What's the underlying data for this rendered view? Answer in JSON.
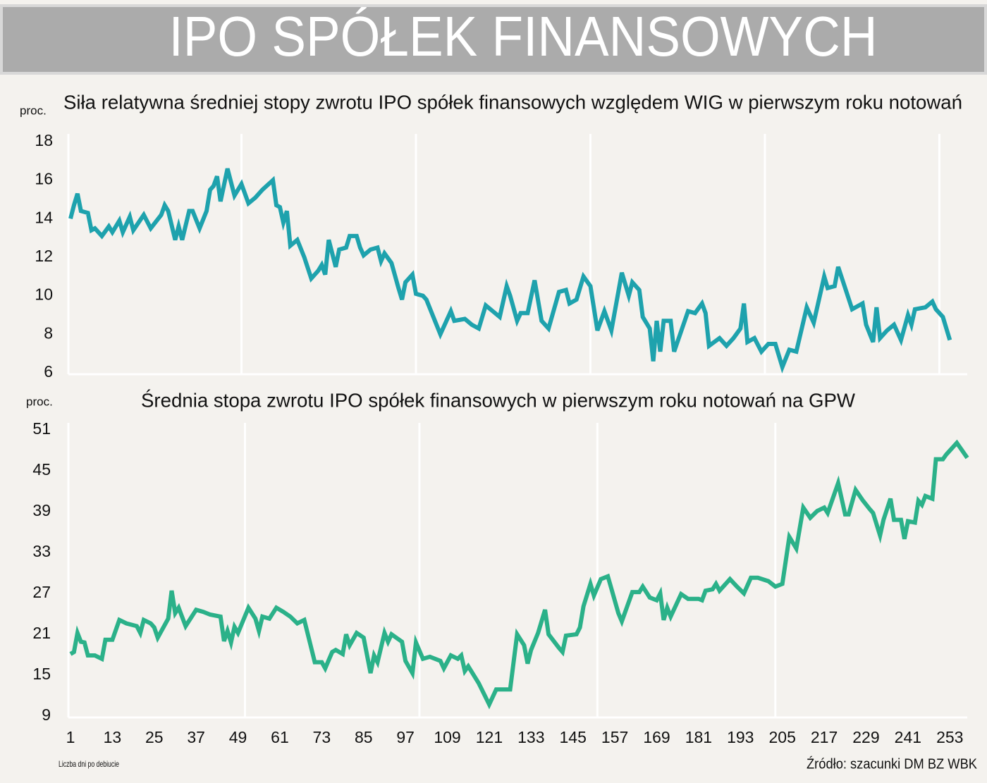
{
  "title": "IPO SPÓŁEK FINANSOWYCH",
  "x_label": "Liczba dni po debiucie",
  "source": "Źródło: szacunki DM BZ WBK",
  "chart_data": [
    {
      "type": "line",
      "title": "Siła relatywna średniej stopy zwrotu IPO spółek finansowych względem WIG w pierwszym roku notowań",
      "y_label": "proc.",
      "color": "#1ea2ad",
      "xlim": [
        1,
        258
      ],
      "xgrid": [
        50,
        100,
        150,
        200,
        250
      ],
      "ylim": [
        6,
        18
      ],
      "yticks": [
        6,
        8,
        10,
        12,
        14,
        16,
        18
      ],
      "x": [
        1,
        2,
        3,
        4,
        6,
        7,
        8,
        10,
        12,
        13,
        15,
        16,
        18,
        19,
        22,
        24,
        27,
        28,
        29,
        31,
        32,
        33,
        35,
        36,
        38,
        40,
        41,
        42,
        43,
        44,
        46,
        48,
        50,
        52,
        54,
        56,
        59,
        60,
        61,
        62,
        63,
        64,
        66,
        68,
        70,
        72,
        73,
        74,
        75,
        77,
        78,
        80,
        81,
        83,
        84,
        85,
        87,
        89,
        90,
        91,
        93,
        95,
        96,
        97,
        99,
        100,
        102,
        103,
        105,
        107,
        110,
        111,
        114,
        116,
        118,
        120,
        122,
        124,
        126,
        127,
        129,
        130,
        132,
        134,
        136,
        138,
        141,
        143,
        144,
        146,
        148,
        150,
        152,
        154,
        156,
        158,
        159,
        161,
        162,
        164,
        165,
        167,
        168,
        169,
        170,
        171,
        173,
        174,
        178,
        180,
        182,
        183,
        184,
        187,
        189,
        191,
        193,
        194,
        195,
        197,
        199,
        201,
        203,
        205,
        207,
        209,
        212,
        214,
        217,
        218,
        220,
        221,
        223,
        225,
        228,
        229,
        231,
        232,
        233,
        235,
        237,
        239,
        241,
        242,
        243,
        246,
        248,
        249,
        251,
        253
      ],
      "values": [
        14.0,
        14.7,
        15.3,
        14.4,
        14.3,
        13.4,
        13.5,
        13.1,
        13.6,
        13.3,
        13.9,
        13.3,
        14.1,
        13.4,
        14.2,
        13.5,
        14.2,
        14.7,
        14.4,
        12.9,
        13.6,
        12.9,
        14.4,
        14.4,
        13.5,
        14.4,
        15.5,
        15.7,
        16.2,
        14.9,
        16.6,
        15.2,
        15.8,
        14.8,
        15.1,
        15.5,
        16.0,
        14.7,
        14.6,
        13.8,
        14.4,
        12.6,
        12.9,
        12.0,
        10.9,
        11.3,
        11.6,
        11.1,
        12.9,
        11.5,
        12.4,
        12.5,
        13.1,
        13.1,
        12.5,
        12.1,
        12.4,
        12.5,
        11.8,
        12.2,
        11.7,
        10.4,
        9.8,
        10.7,
        11.1,
        10.1,
        10.0,
        9.8,
        8.9,
        8.0,
        9.2,
        8.7,
        8.8,
        8.5,
        8.3,
        9.5,
        9.2,
        8.9,
        10.5,
        10.0,
        8.7,
        9.1,
        9.1,
        10.8,
        8.7,
        8.3,
        10.2,
        10.3,
        9.6,
        9.8,
        11.0,
        10.5,
        8.2,
        9.2,
        8.2,
        10.2,
        11.2,
        10.0,
        10.7,
        10.3,
        8.9,
        8.3,
        6.6,
        8.7,
        7.1,
        8.7,
        8.7,
        7.1,
        9.2,
        9.1,
        9.6,
        9.1,
        7.4,
        7.8,
        7.4,
        7.8,
        8.3,
        9.6,
        7.6,
        7.8,
        7.1,
        7.5,
        7.5,
        6.3,
        7.2,
        7.1,
        9.4,
        8.6,
        11.0,
        10.4,
        10.5,
        11.5,
        10.4,
        9.3,
        9.6,
        8.5,
        7.6,
        9.4,
        7.8,
        8.2,
        8.5,
        7.7,
        9.0,
        8.5,
        9.3,
        9.4,
        9.7,
        9.3,
        8.9,
        7.7
      ]
    },
    {
      "type": "line",
      "title": "Średnia stopa zwrotu IPO spółek finansowych w pierwszym roku notowań na GPW",
      "y_label": "proc.",
      "color": "#2bb189",
      "xlim": [
        1,
        258
      ],
      "xgrid": [
        51,
        101,
        152,
        203
      ],
      "xticks": [
        1,
        13,
        25,
        37,
        49,
        61,
        73,
        85,
        97,
        109,
        121,
        133,
        145,
        157,
        169,
        181,
        193,
        205,
        217,
        229,
        241,
        253
      ],
      "ylim": [
        9,
        51
      ],
      "yticks": [
        9,
        15,
        21,
        27,
        33,
        39,
        45,
        51
      ],
      "x": [
        1,
        2,
        3,
        4,
        5,
        6,
        8,
        10,
        11,
        13,
        15,
        17,
        20,
        21,
        22,
        24,
        25,
        26,
        29,
        30,
        31,
        32,
        34,
        37,
        39,
        41,
        44,
        45,
        46,
        47,
        48,
        49,
        52,
        54,
        55,
        56,
        58,
        60,
        62,
        64,
        66,
        68,
        71,
        73,
        74,
        76,
        77,
        79,
        80,
        81,
        83,
        85,
        87,
        88,
        89,
        91,
        92,
        93,
        96,
        97,
        99,
        100,
        102,
        104,
        107,
        108,
        110,
        112,
        113,
        114,
        115,
        118,
        121,
        123,
        127,
        129,
        131,
        132,
        133,
        135,
        137,
        138,
        141,
        142,
        143,
        146,
        147,
        148,
        150,
        151,
        153,
        155,
        156,
        158,
        159,
        162,
        164,
        165,
        167,
        169,
        170,
        171,
        172,
        173,
        176,
        178,
        181,
        182,
        183,
        185,
        186,
        187,
        190,
        192,
        194,
        196,
        198,
        201,
        203,
        205,
        207,
        209,
        211,
        213,
        215,
        217,
        218,
        221,
        223,
        224,
        226,
        228,
        230,
        231,
        233,
        234,
        236,
        237,
        239,
        240,
        241,
        243,
        244,
        245,
        246,
        248,
        249,
        251,
        252,
        255,
        258
      ],
      "values": [
        18.1,
        18.4,
        21.2,
        19.9,
        19.8,
        17.9,
        17.9,
        17.4,
        20.2,
        20.2,
        23.1,
        22.6,
        22.2,
        21.2,
        23.1,
        22.6,
        22.0,
        20.5,
        23.3,
        27.4,
        24.1,
        24.9,
        22.2,
        24.6,
        24.3,
        23.9,
        23.6,
        20.0,
        21.5,
        19.8,
        22.1,
        21.2,
        24.9,
        23.3,
        21.5,
        23.6,
        23.3,
        24.9,
        24.3,
        23.6,
        22.6,
        23.1,
        16.9,
        16.9,
        16.0,
        18.4,
        18.7,
        18.1,
        21.0,
        19.4,
        21.2,
        20.5,
        15.3,
        17.9,
        16.9,
        21.2,
        19.9,
        21.0,
        19.9,
        17.1,
        15.3,
        19.8,
        17.4,
        17.7,
        17.1,
        16.0,
        17.9,
        17.4,
        17.9,
        15.6,
        16.3,
        13.8,
        10.7,
        12.9,
        12.9,
        21.0,
        19.4,
        16.7,
        18.7,
        21.2,
        24.6,
        21.0,
        19.0,
        18.4,
        20.8,
        21.0,
        22.0,
        25.1,
        28.4,
        26.7,
        29.1,
        29.5,
        27.7,
        24.1,
        22.9,
        27.2,
        27.2,
        28.0,
        26.4,
        26.0,
        27.0,
        23.1,
        24.9,
        23.6,
        26.9,
        26.2,
        26.2,
        26.0,
        27.4,
        27.6,
        28.4,
        27.4,
        29.1,
        28.0,
        27.0,
        29.3,
        29.3,
        28.8,
        28.0,
        28.4,
        35.3,
        33.6,
        39.6,
        38.1,
        39.1,
        39.6,
        38.8,
        43.2,
        38.6,
        38.6,
        42.2,
        40.7,
        39.4,
        38.8,
        35.5,
        37.8,
        40.9,
        37.8,
        37.8,
        35.0,
        37.6,
        37.4,
        40.6,
        40.0,
        41.3,
        40.9,
        46.7,
        46.7,
        47.4,
        49.1,
        46.9
      ]
    }
  ]
}
